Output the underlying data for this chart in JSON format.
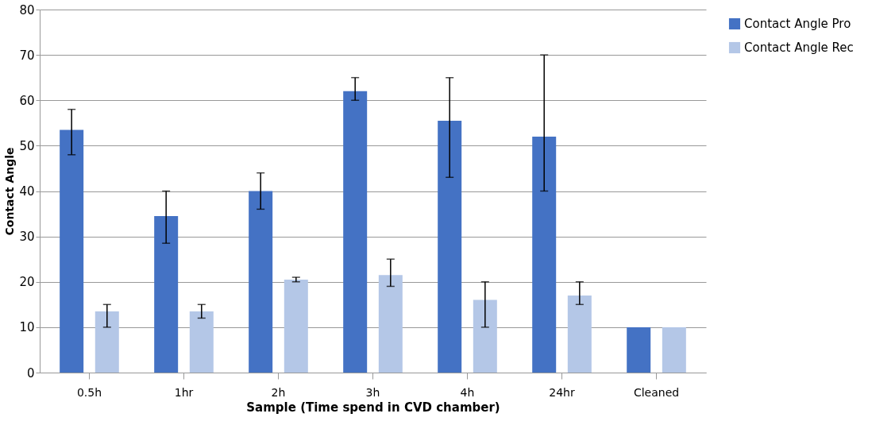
{
  "chart_data": {
    "type": "bar",
    "xlabel": "Sample (Time spend in CVD chamber)",
    "ylabel": "Contact Angle",
    "categories": [
      "0.5h",
      "1hr",
      "2h",
      "3h",
      "4h",
      "24hr",
      "Cleaned"
    ],
    "series": [
      {
        "name": "Contact Angle Pro",
        "color": "#4472c4",
        "values": [
          53.5,
          34.5,
          40,
          62,
          55.5,
          52,
          10
        ],
        "errors": [
          [
            48,
            58
          ],
          [
            28.5,
            40
          ],
          [
            36,
            44
          ],
          [
            60,
            65
          ],
          [
            43,
            65
          ],
          [
            40,
            70
          ],
          null
        ]
      },
      {
        "name": "Contact Angle Rec",
        "color": "#b4c7e7",
        "values": [
          13.5,
          13.5,
          20.5,
          21.5,
          16,
          17,
          10
        ],
        "errors": [
          [
            10,
            15
          ],
          [
            12,
            15
          ],
          [
            20,
            21
          ],
          [
            19,
            25
          ],
          [
            10,
            20
          ],
          [
            15,
            20
          ],
          null
        ]
      }
    ],
    "ylim": [
      0,
      80
    ],
    "yticks": [
      0,
      10,
      20,
      30,
      40,
      50,
      60,
      70,
      80
    ],
    "grid": "y",
    "legend": "right"
  }
}
